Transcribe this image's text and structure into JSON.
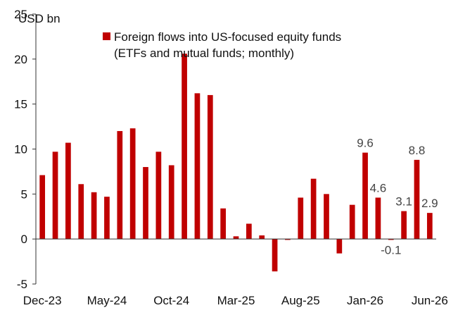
{
  "chart_data": {
    "type": "bar",
    "unit_label": "USD bn",
    "legend": [
      "Foreign flows into US-focused equity funds",
      "(ETFs and mutual funds; monthly)"
    ],
    "x": [
      "Dec-23",
      "Jan-24",
      "Feb-24",
      "Mar-24",
      "Apr-24",
      "May-24",
      "Jun-24",
      "Jul-24",
      "Aug-24",
      "Sep-24",
      "Oct-24",
      "Nov-24",
      "Dec-24",
      "Jan-25",
      "Feb-25",
      "Mar-25",
      "Apr-25",
      "May-25",
      "Jun-25",
      "Jul-25",
      "Aug-25",
      "Sep-25",
      "Oct-25",
      "Nov-25",
      "Dec-25",
      "Jan-26",
      "Feb-26",
      "Mar-26",
      "Apr-26",
      "May-26",
      "Jun-26"
    ],
    "values": [
      7.1,
      9.7,
      10.7,
      6.1,
      5.2,
      4.7,
      12.0,
      12.3,
      8.0,
      9.7,
      8.2,
      20.6,
      16.2,
      16.0,
      3.4,
      0.3,
      1.7,
      0.4,
      -3.6,
      -0.1,
      4.6,
      6.7,
      5.0,
      -1.6,
      3.8,
      9.6,
      4.6,
      -0.1,
      3.1,
      8.8,
      2.9
    ],
    "x_tick_labels": [
      "Dec-23",
      "May-24",
      "Oct-24",
      "Mar-25",
      "Aug-25",
      "Jan-26",
      "Jun-26"
    ],
    "y_ticks": [
      -5,
      0,
      5,
      10,
      15,
      20,
      25
    ],
    "ylim": [
      -5,
      25
    ],
    "data_labels": [
      {
        "x": "Jan-26",
        "text": "9.6"
      },
      {
        "x": "Feb-26",
        "text": "4.6"
      },
      {
        "x": "Mar-26",
        "text": "-0.1"
      },
      {
        "x": "Apr-26",
        "text": "3.1"
      },
      {
        "x": "May-26",
        "text": "8.8"
      },
      {
        "x": "Jun-26",
        "text": "2.9"
      }
    ],
    "bar_color": "#C00000",
    "grid": false,
    "legend_position": "top-center"
  }
}
